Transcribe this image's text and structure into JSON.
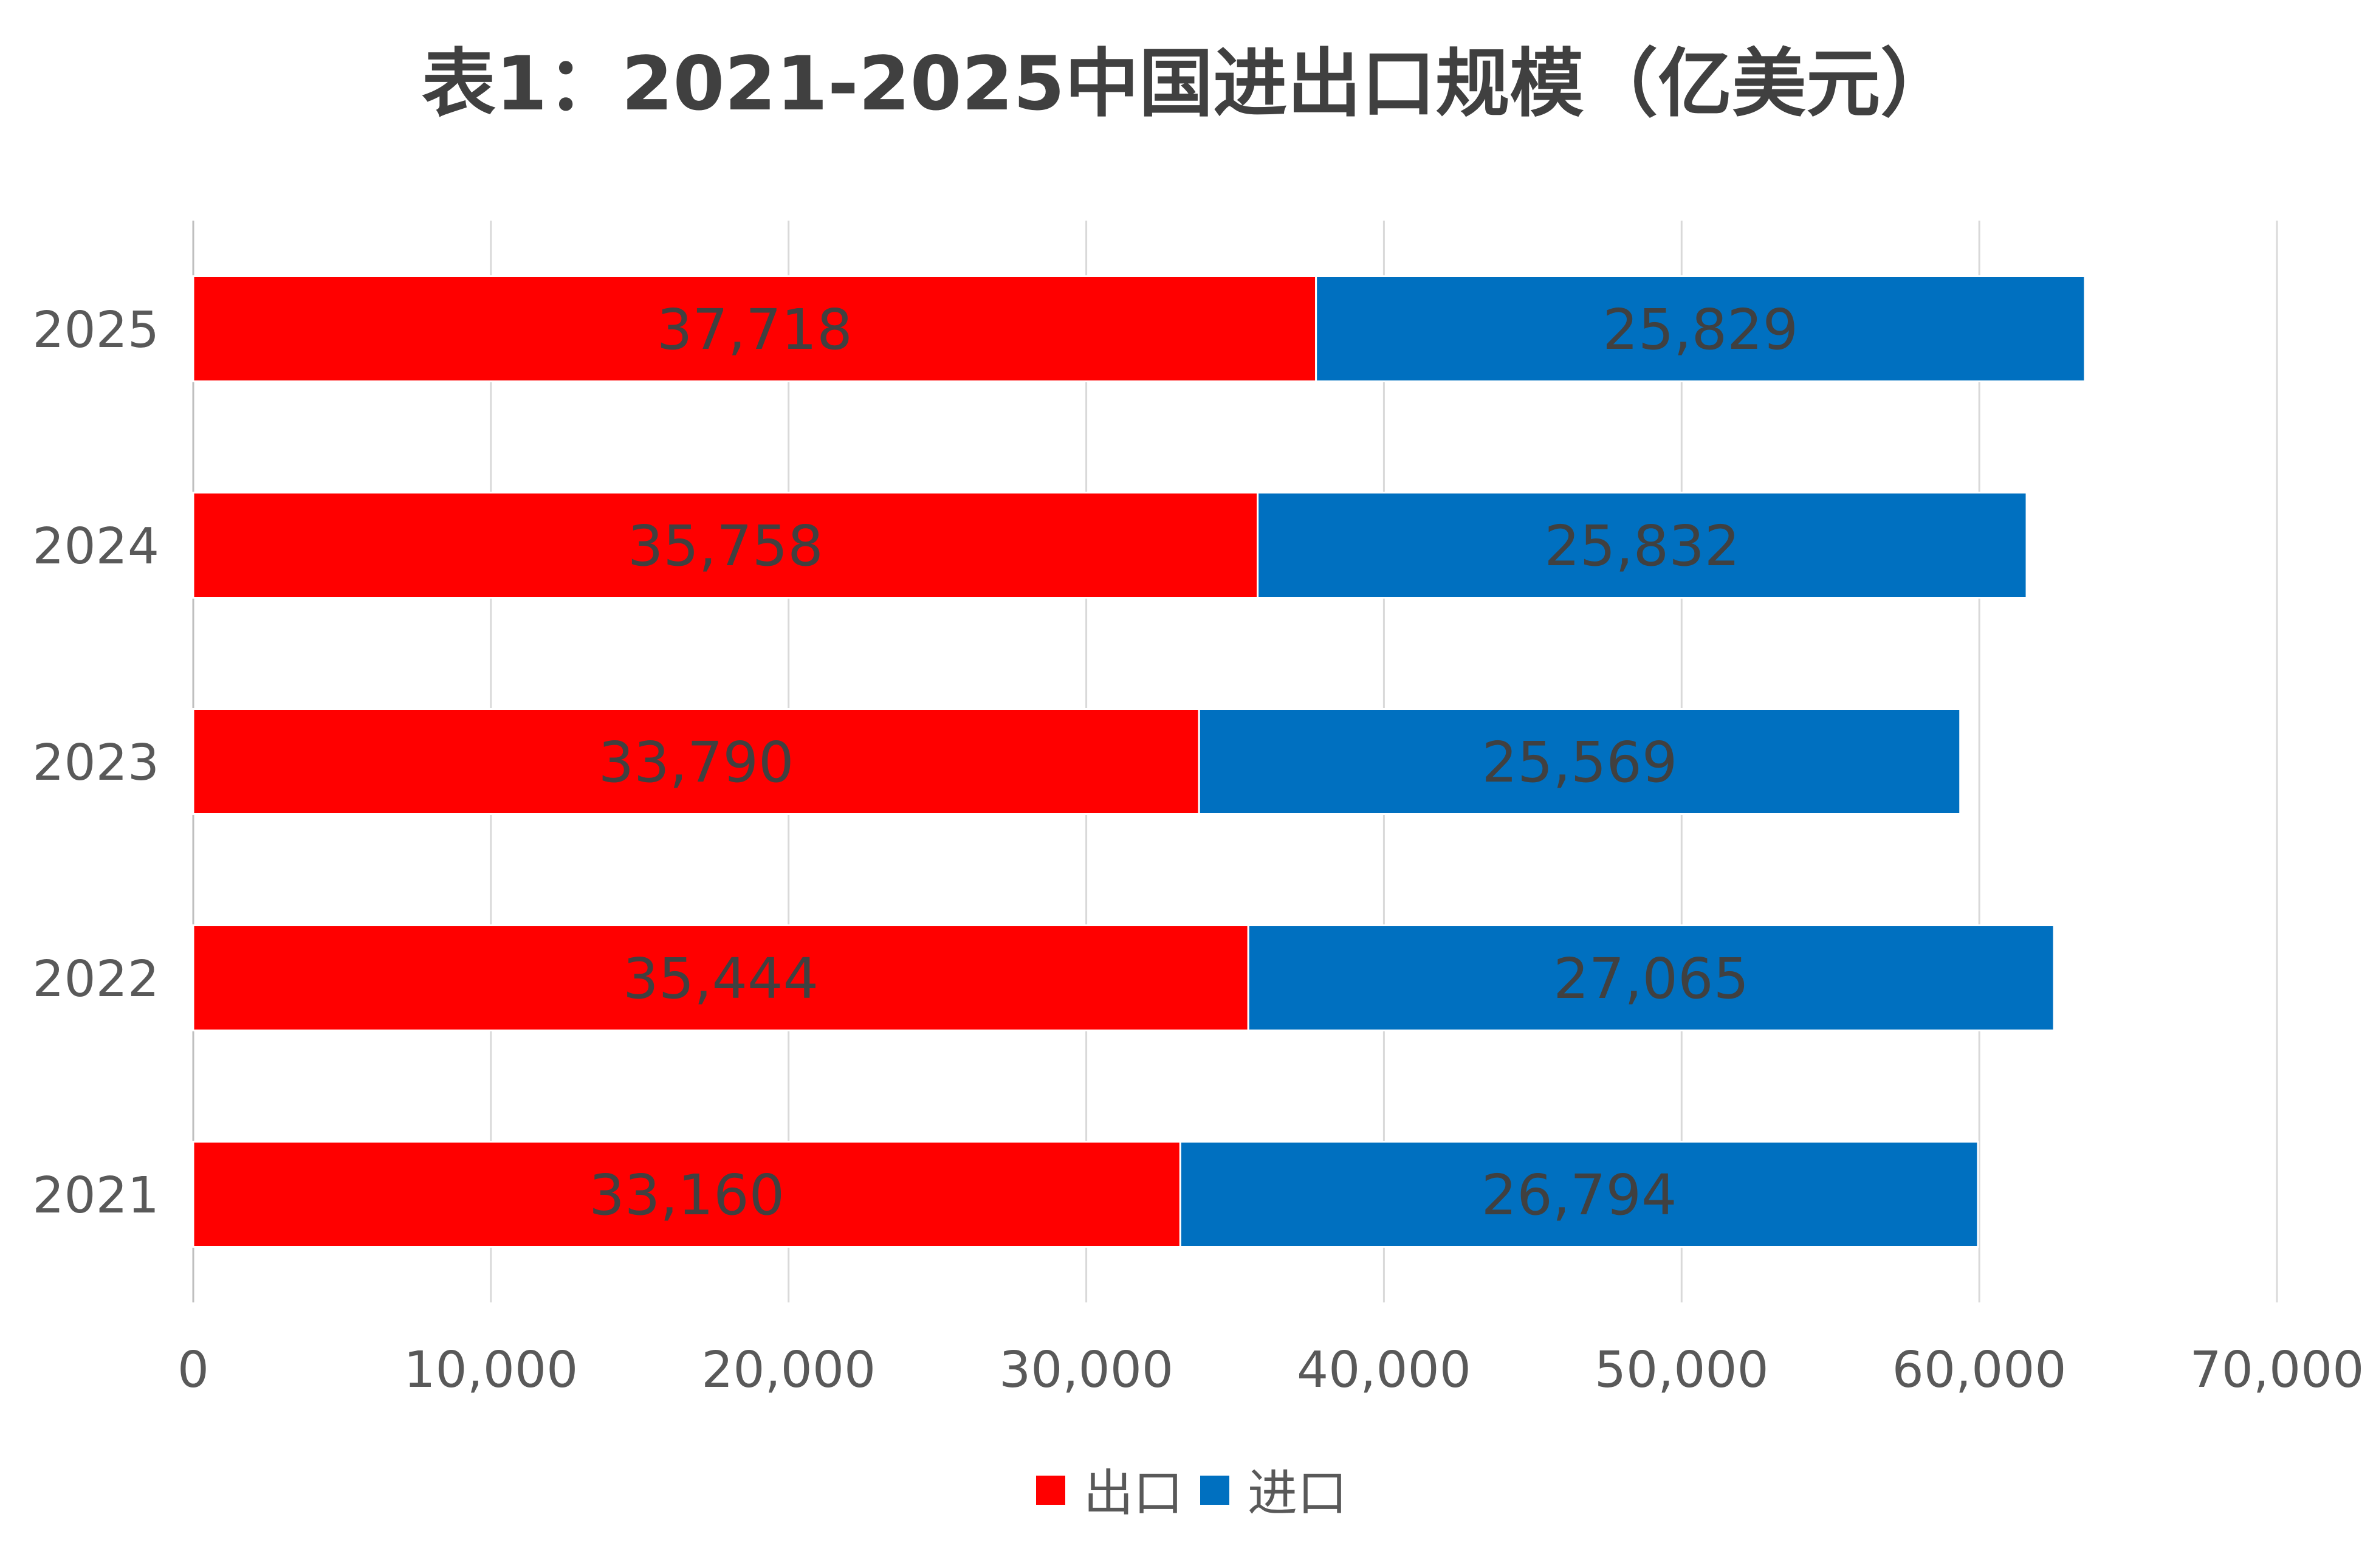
{
  "chart_data": {
    "type": "bar",
    "orientation": "horizontal",
    "stacked": true,
    "title": "表1：2021-2025中国进出口规模（亿美元）",
    "xlabel": "",
    "ylabel": "",
    "categories": [
      "2025",
      "2024",
      "2023",
      "2022",
      "2021"
    ],
    "series": [
      {
        "name": "出口",
        "color": "#FF0000",
        "values": [
          37718,
          35758,
          33790,
          35444,
          33160
        ],
        "labels": [
          "37,718",
          "35,758",
          "33,790",
          "35,444",
          "33,160"
        ]
      },
      {
        "name": "进口",
        "color": "#0070C0",
        "values": [
          25829,
          25832,
          25569,
          27065,
          26794
        ],
        "labels": [
          "25,829",
          "25,832",
          "25,569",
          "27,065",
          "26,794"
        ]
      }
    ],
    "xlim": [
      0,
      70000
    ],
    "xticks": [
      0,
      10000,
      20000,
      30000,
      40000,
      50000,
      60000,
      70000
    ],
    "xtick_labels": [
      "0",
      "10,000",
      "20,000",
      "30,000",
      "40,000",
      "50,000",
      "60,000",
      "70,000"
    ],
    "grid": "vertical",
    "legend": "bottom",
    "text_color": "#404040",
    "grid_color": "#D9D9D9"
  }
}
